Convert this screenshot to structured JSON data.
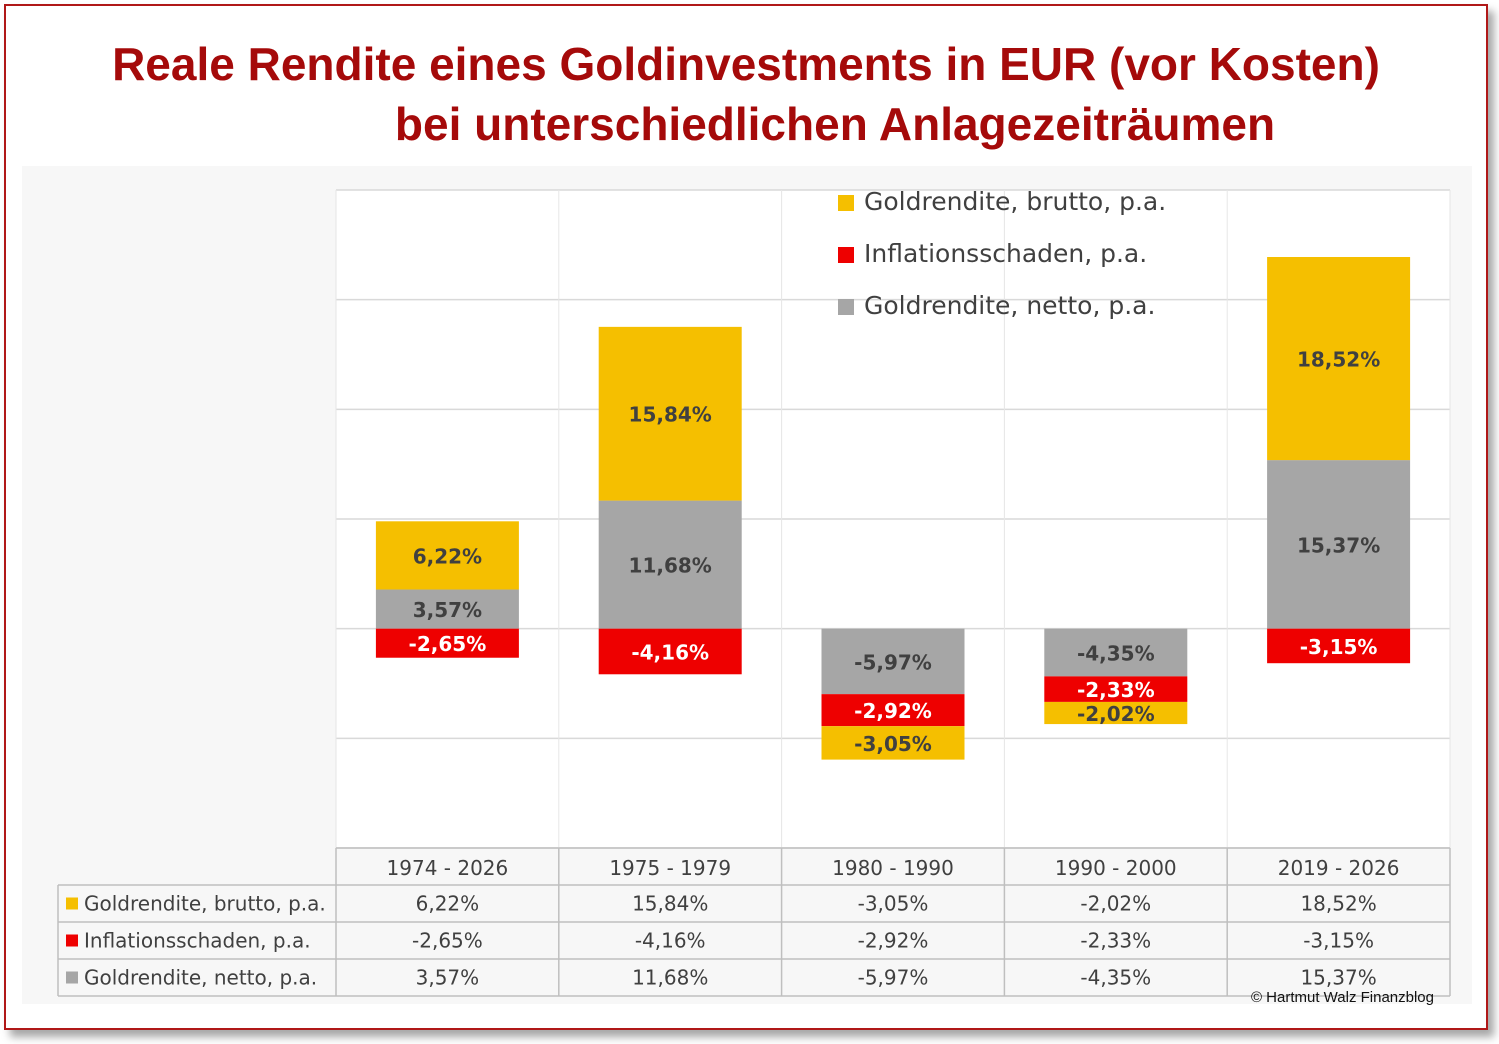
{
  "title": {
    "line1": "Reale Rendite eines Goldinvestments in EUR (vor Kosten)",
    "line2": "bei unterschiedlichen Anlagezeiträumen"
  },
  "copyright": "© Hartmut  Walz Finanzblog",
  "colors": {
    "title": "#a50a0a",
    "frame": "#b01818",
    "brutto": "#f5bf00",
    "inflation": "#ee0000",
    "netto": "#a6a6a6",
    "grid": "#d9d9d9"
  },
  "chart_data": {
    "type": "bar",
    "stacked": true,
    "categories": [
      "1974 - 2026",
      "1975 - 1979",
      "1980 - 1990",
      "1990 - 2000",
      "2019 - 2026"
    ],
    "series": [
      {
        "name": "Goldrendite, brutto, p.a.",
        "color": "#f5bf00",
        "values": [
          6.22,
          15.84,
          -3.05,
          -2.02,
          18.52
        ],
        "labels": [
          "6,22%",
          "15,84%",
          "-3,05%",
          "-2,02%",
          "18,52%"
        ]
      },
      {
        "name": "Inflationsschaden, p.a.",
        "color": "#ee0000",
        "values": [
          -2.65,
          -4.16,
          -2.92,
          -2.33,
          -3.15
        ],
        "labels": [
          "-2,65%",
          "-4,16%",
          "-2,92%",
          "-2,33%",
          "-3,15%"
        ]
      },
      {
        "name": "Goldrendite, netto, p.a.",
        "color": "#a6a6a6",
        "values": [
          3.57,
          11.68,
          -5.97,
          -4.35,
          15.37
        ],
        "labels": [
          "3,57%",
          "11,68%",
          "-5,97%",
          "-4,35%",
          "15,37%"
        ]
      }
    ],
    "ylim": [
      -20,
      40
    ],
    "grid": true,
    "legend_position": "top-right",
    "data_table": true
  }
}
